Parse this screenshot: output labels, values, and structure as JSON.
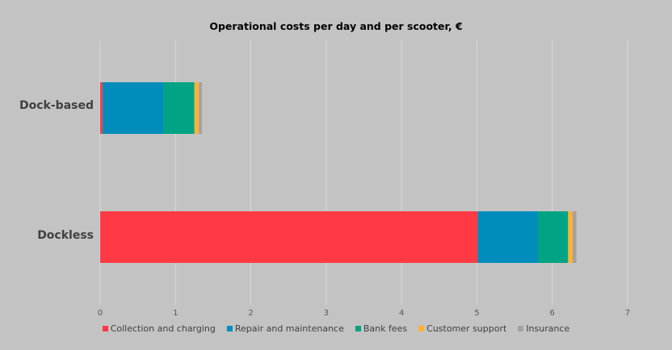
{
  "chart_data": {
    "type": "bar",
    "orientation": "horizontal",
    "stacked": true,
    "title": "Operational costs per day and per scooter, €",
    "categories": [
      "Dock-based",
      "Dockless"
    ],
    "series": [
      {
        "name": "Collection and charging",
        "values": [
          0.03,
          5.01
        ],
        "color": "#ff3a44"
      },
      {
        "name": "Repair and maintenance",
        "values": [
          0.81,
          0.8
        ],
        "color": "#008dbb"
      },
      {
        "name": "Bank fees",
        "values": [
          0.41,
          0.4
        ],
        "color": "#00a383"
      },
      {
        "name": "Customer support",
        "values": [
          0.06,
          0.06
        ],
        "color": "#ffb133"
      },
      {
        "name": "Insurance",
        "values": [
          0.04,
          0.05
        ],
        "color": "#a6a0a0"
      }
    ],
    "xlim": [
      0,
      7
    ],
    "xticks": [
      0,
      1,
      2,
      3,
      4,
      5,
      6,
      7
    ],
    "grid": true,
    "legend_position": "bottom",
    "background": "#c3c3c3"
  }
}
